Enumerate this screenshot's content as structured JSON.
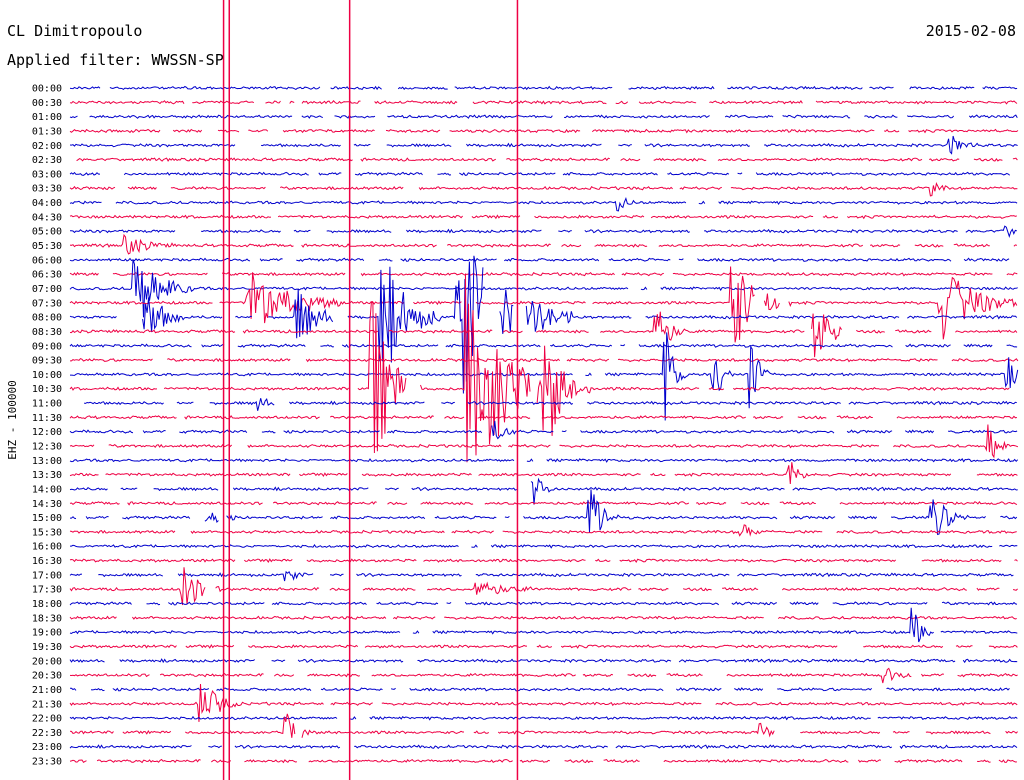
{
  "header": {
    "station": "CL Dimitropoulo",
    "filter_label": "Applied filter: WWSSN-SP",
    "date": "2015-02-08"
  },
  "chart_data": {
    "type": "line",
    "channel_label": "EHZ - 100000",
    "rows": [
      "00:00",
      "00:30",
      "01:00",
      "01:30",
      "02:00",
      "02:30",
      "03:00",
      "03:30",
      "04:00",
      "04:30",
      "05:00",
      "05:30",
      "06:00",
      "06:30",
      "07:00",
      "07:30",
      "08:00",
      "08:30",
      "09:00",
      "09:30",
      "10:00",
      "10:30",
      "11:00",
      "11:30",
      "12:00",
      "12:30",
      "13:00",
      "13:30",
      "14:00",
      "14:30",
      "15:00",
      "15:30",
      "16:00",
      "16:30",
      "17:00",
      "17:30",
      "18:00",
      "18:30",
      "19:00",
      "19:30",
      "20:00",
      "20:30",
      "21:00",
      "21:30",
      "22:00",
      "22:30",
      "23:00",
      "23:30"
    ],
    "colors": [
      "#0000cc",
      "#ee0044"
    ],
    "events": [
      {
        "row": 4,
        "x": 0.93,
        "amp": 10,
        "w": 0.03
      },
      {
        "row": 7,
        "x": 0.91,
        "amp": 7,
        "w": 0.02
      },
      {
        "row": 8,
        "x": 0.58,
        "amp": 8,
        "w": 0.02
      },
      {
        "row": 10,
        "x": 0.99,
        "amp": 6,
        "w": 0.02
      },
      {
        "row": 11,
        "x": 0.06,
        "amp": 10,
        "w": 0.05
      },
      {
        "row": 14,
        "x": 0.07,
        "amp": 40,
        "w": 0.06
      },
      {
        "row": 15,
        "x": 0.19,
        "amp": 35,
        "w": 0.1
      },
      {
        "row": 15,
        "x": 0.7,
        "amp": 50,
        "w": 0.06
      },
      {
        "row": 15,
        "x": 0.92,
        "amp": 40,
        "w": 0.08
      },
      {
        "row": 16,
        "x": 0.08,
        "amp": 35,
        "w": 0.04
      },
      {
        "row": 16,
        "x": 0.24,
        "amp": 30,
        "w": 0.05
      },
      {
        "row": 16,
        "x": 0.33,
        "amp": 70,
        "w": 0.06
      },
      {
        "row": 16,
        "x": 0.41,
        "amp": 95,
        "w": 0.12
      },
      {
        "row": 17,
        "x": 0.62,
        "amp": 30,
        "w": 0.03
      },
      {
        "row": 17,
        "x": 0.78,
        "amp": 40,
        "w": 0.05
      },
      {
        "row": 20,
        "x": 0.63,
        "amp": 45,
        "w": 0.02
      },
      {
        "row": 20,
        "x": 0.68,
        "amp": 35,
        "w": 0.02
      },
      {
        "row": 20,
        "x": 0.72,
        "amp": 40,
        "w": 0.02
      },
      {
        "row": 20,
        "x": 0.99,
        "amp": 20,
        "w": 0.02
      },
      {
        "row": 21,
        "x": 0.32,
        "amp": 90,
        "w": 0.05
      },
      {
        "row": 21,
        "x": 0.42,
        "amp": 120,
        "w": 0.1
      },
      {
        "row": 21,
        "x": 0.5,
        "amp": 60,
        "w": 0.05
      },
      {
        "row": 22,
        "x": 0.2,
        "amp": 8,
        "w": 0.02
      },
      {
        "row": 24,
        "x": 0.44,
        "amp": 25,
        "w": 0.03
      },
      {
        "row": 25,
        "x": 0.97,
        "amp": 25,
        "w": 0.02
      },
      {
        "row": 27,
        "x": 0.76,
        "amp": 15,
        "w": 0.02
      },
      {
        "row": 28,
        "x": 0.49,
        "amp": 18,
        "w": 0.02
      },
      {
        "row": 30,
        "x": 0.14,
        "amp": 10,
        "w": 0.04
      },
      {
        "row": 30,
        "x": 0.55,
        "amp": 30,
        "w": 0.03
      },
      {
        "row": 30,
        "x": 0.91,
        "amp": 25,
        "w": 0.04
      },
      {
        "row": 31,
        "x": 0.71,
        "amp": 10,
        "w": 0.02
      },
      {
        "row": 34,
        "x": 0.23,
        "amp": 8,
        "w": 0.02
      },
      {
        "row": 35,
        "x": 0.12,
        "amp": 25,
        "w": 0.04
      },
      {
        "row": 35,
        "x": 0.43,
        "amp": 10,
        "w": 0.06
      },
      {
        "row": 38,
        "x": 0.89,
        "amp": 25,
        "w": 0.02
      },
      {
        "row": 41,
        "x": 0.86,
        "amp": 8,
        "w": 0.03
      },
      {
        "row": 43,
        "x": 0.14,
        "amp": 25,
        "w": 0.04
      },
      {
        "row": 45,
        "x": 0.23,
        "amp": 20,
        "w": 0.03
      },
      {
        "row": 45,
        "x": 0.73,
        "amp": 12,
        "w": 0.02
      }
    ],
    "spikes": [
      {
        "x": 0.162,
        "color": "#ee0044"
      },
      {
        "x": 0.168,
        "color": "#ee0044"
      },
      {
        "x": 0.295,
        "color": "#ee0044"
      },
      {
        "x": 0.472,
        "color": "#ee0044"
      }
    ]
  }
}
